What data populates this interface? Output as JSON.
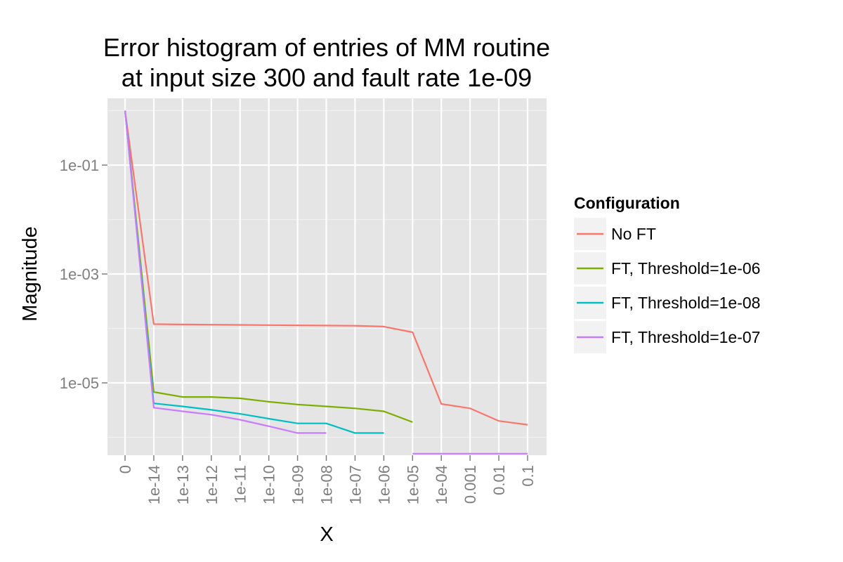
{
  "chart_data": {
    "type": "line",
    "title": [
      "Error histogram of entries of MM routine",
      "at input size 300 and fault rate 1e-09"
    ],
    "xlabel": "X",
    "ylabel": "Magnitude",
    "y_scale": "log10",
    "ylim": [
      5e-07,
      1.0
    ],
    "y_ticks": [
      0.1,
      0.001,
      1e-05
    ],
    "y_tick_labels": [
      "1e-01",
      "1e-03",
      "1e-05"
    ],
    "categories": [
      "0",
      "1e-14",
      "1e-13",
      "1e-12",
      "1e-11",
      "1e-10",
      "1e-09",
      "1e-08",
      "1e-07",
      "1e-06",
      "1e-05",
      "1e-04",
      "0.001",
      "0.01",
      "0.1"
    ],
    "grid": true,
    "legend_position": "right",
    "legend_title": "Configuration",
    "series": [
      {
        "name": "No FT",
        "color": "#F8766D",
        "values": [
          1.0,
          0.00012,
          0.000118,
          0.000117,
          0.000116,
          0.000115,
          0.000114,
          0.000113,
          0.000112,
          0.000108,
          8.5e-05,
          4.1e-06,
          3.4e-06,
          2e-06,
          1.7e-06
        ]
      },
      {
        "name": "FT, Threshold=1e-06",
        "color": "#7CAE00",
        "values": [
          1.0,
          6.8e-06,
          5.5e-06,
          5.5e-06,
          5.2e-06,
          4.5e-06,
          4e-06,
          3.7e-06,
          3.4e-06,
          3e-06,
          1.9e-06,
          null,
          null,
          null,
          null
        ]
      },
      {
        "name": "FT, Threshold=1e-08",
        "color": "#00BFC4",
        "values": [
          1.0,
          4.2e-06,
          3.7e-06,
          3.2e-06,
          2.7e-06,
          2.2e-06,
          1.8e-06,
          1.8e-06,
          1.2e-06,
          1.2e-06,
          null,
          null,
          null,
          null,
          null
        ]
      },
      {
        "name": "FT, Threshold=1e-07",
        "color": "#C77CFF",
        "values": [
          1.0,
          3.5e-06,
          3e-06,
          2.6e-06,
          2.1e-06,
          1.6e-06,
          1.2e-06,
          1.2e-06,
          null,
          null,
          5e-07,
          5e-07,
          5e-07,
          5e-07,
          5e-07
        ]
      }
    ]
  }
}
